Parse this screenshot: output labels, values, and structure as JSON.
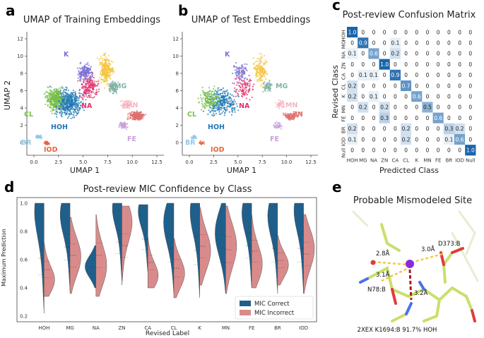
{
  "panels": {
    "a": {
      "label": "a",
      "title": "UMAP of Training Embeddings",
      "xlabel": "UMAP 1",
      "ylabel": "UMAP 2"
    },
    "b": {
      "label": "b",
      "title": "UMAP of Test Embeddings",
      "xlabel": "UMAP 1"
    },
    "c": {
      "label": "c",
      "title": "Post-review Confusion Matrix",
      "xlabel": "Predicted Class",
      "ylabel": "Revised Class"
    },
    "d": {
      "label": "d",
      "title": "Post-review MIC Confidence by Class",
      "xlabel": "Revised Label",
      "ylabel": "Maximum Prediction"
    },
    "e": {
      "label": "e",
      "title": "Probable Mismodeled Site"
    }
  },
  "umap_axes": {
    "x_ticks": [
      "0.0",
      "2.5",
      "5.0",
      "7.5",
      "10.0",
      "12.5"
    ],
    "y_ticks": [
      "0",
      "2",
      "4",
      "6",
      "8",
      "10",
      "12"
    ]
  },
  "cluster_labels": [
    {
      "text": "K",
      "color": "#7b6fd6"
    },
    {
      "text": "CA",
      "color": "#f5c542"
    },
    {
      "text": "MG",
      "color": "#7fb3a6"
    },
    {
      "text": "CL",
      "color": "#7ac142"
    },
    {
      "text": "NA",
      "color": "#e0306b"
    },
    {
      "text": "HOH",
      "color": "#1f78b4"
    },
    {
      "text": "MN",
      "color": "#f4b6c2"
    },
    {
      "text": "ZN",
      "color": "#e07070"
    },
    {
      "text": "FE",
      "color": "#c9a0dc"
    },
    {
      "text": "BR",
      "color": "#8ecae6"
    },
    {
      "text": "IOD",
      "color": "#e8643c"
    }
  ],
  "chart_data": [
    {
      "type": "heatmap",
      "title": "Post-review Confusion Matrix",
      "xlabel": "Predicted Class",
      "ylabel": "Revised Class",
      "x_categories": [
        "HOH",
        "MG",
        "NA",
        "ZN",
        "CA",
        "CL",
        "K",
        "MN",
        "FE",
        "BR",
        "IOD",
        "Null"
      ],
      "y_categories": [
        "HOH",
        "MG",
        "NA",
        "ZN",
        "CA",
        "CL",
        "K",
        "MN",
        "FE",
        "BR",
        "IOD",
        "Null"
      ],
      "values": [
        [
          "1.0",
          "0",
          "0",
          "0",
          "0",
          "0",
          "0",
          "0",
          "0",
          "0",
          "0",
          "0"
        ],
        [
          "0",
          "0.9",
          "0",
          "0",
          "0.1",
          "0",
          "0",
          "0",
          "0",
          "0",
          "0",
          "0"
        ],
        [
          "0.1",
          "0",
          "0.6",
          "0",
          "0.2",
          "0",
          "0",
          "0",
          "0",
          "0",
          "0",
          "0"
        ],
        [
          "0",
          "0",
          "0",
          "1.0",
          "0",
          "0",
          "0",
          "0",
          "0",
          "0",
          "0",
          "0"
        ],
        [
          "0",
          "0.1",
          "0.1",
          "0",
          "0.9",
          "0",
          "0",
          "0",
          "0",
          "0",
          "0",
          "0"
        ],
        [
          "0.2",
          "0",
          "0",
          "0",
          "0",
          "0.7",
          "0",
          "0",
          "0",
          "0",
          "0",
          "0"
        ],
        [
          "0.2",
          "0",
          "0.1",
          "0",
          "0",
          "0",
          "0.6",
          "0",
          "0",
          "0",
          "0",
          "0"
        ],
        [
          "0",
          "0.2",
          "0",
          "0.2",
          "0",
          "0",
          "0",
          "0.5",
          "0",
          "0",
          "0",
          "0"
        ],
        [
          "0",
          "0",
          "0",
          "0.3",
          "0",
          "0",
          "0",
          "0",
          "0.6",
          "0",
          "0",
          "0"
        ],
        [
          "0.2",
          "0",
          "0",
          "0",
          "0",
          "0.2",
          "0",
          "0",
          "0",
          "0.3",
          "0.2",
          "0"
        ],
        [
          "0.1",
          "0",
          "0",
          "0",
          "0",
          "0.2",
          "0",
          "0",
          "0",
          "0.1",
          "0.6",
          "0"
        ],
        [
          "0",
          "0",
          "0",
          "0",
          "0",
          "0",
          "0",
          "0",
          "0",
          "0",
          "0",
          "1.0"
        ]
      ]
    },
    {
      "type": "violin",
      "title": "Post-review MIC Confidence by Class",
      "xlabel": "Revised Label",
      "ylabel": "Maximum Prediction",
      "categories": [
        "HOH",
        "MG",
        "NA",
        "ZN",
        "CA",
        "CL",
        "K",
        "MN",
        "FE",
        "BR",
        "IOD"
      ],
      "y_ticks": [
        "0.2",
        "0.4",
        "0.6",
        "0.8",
        "1.0"
      ],
      "ylim": [
        0.2,
        1.0
      ],
      "series": [
        {
          "name": "MIC Correct",
          "color": "#1f5f8b",
          "min": [
            0.22,
            0.38,
            0.4,
            0.45,
            0.5,
            0.36,
            0.33,
            0.36,
            0.4,
            0.36,
            0.36
          ],
          "max": [
            1.0,
            1.0,
            0.7,
            1.0,
            0.99,
            1.0,
            1.0,
            1.0,
            1.0,
            1.0,
            1.0
          ],
          "peak": [
            0.97,
            0.94,
            0.55,
            0.98,
            0.96,
            0.88,
            0.96,
            0.8,
            0.95,
            0.93,
            0.97
          ]
        },
        {
          "name": "MIC Incorrect",
          "color": "#d98b8b",
          "min": [
            0.34,
            0.36,
            0.34,
            0.42,
            0.4,
            0.33,
            0.42,
            0.36,
            0.4,
            0.42,
            0.36
          ],
          "max": [
            0.72,
            0.9,
            0.92,
            0.98,
            0.76,
            0.75,
            0.97,
            0.98,
            0.92,
            0.77,
            0.92
          ],
          "peak": [
            0.45,
            0.62,
            0.55,
            0.88,
            0.48,
            0.5,
            0.66,
            0.7,
            0.56,
            0.56,
            0.68
          ]
        }
      ]
    }
  ],
  "legend": {
    "correct": "MIC Correct",
    "incorrect": "MIC Incorrect"
  },
  "molecule": {
    "labels": [
      "2.8Å",
      "3.0Å",
      "3.1Å",
      "3.2Å",
      "D373:B",
      "N78:B"
    ],
    "caption": "2XEX K1694:B 91.7% HOH"
  }
}
